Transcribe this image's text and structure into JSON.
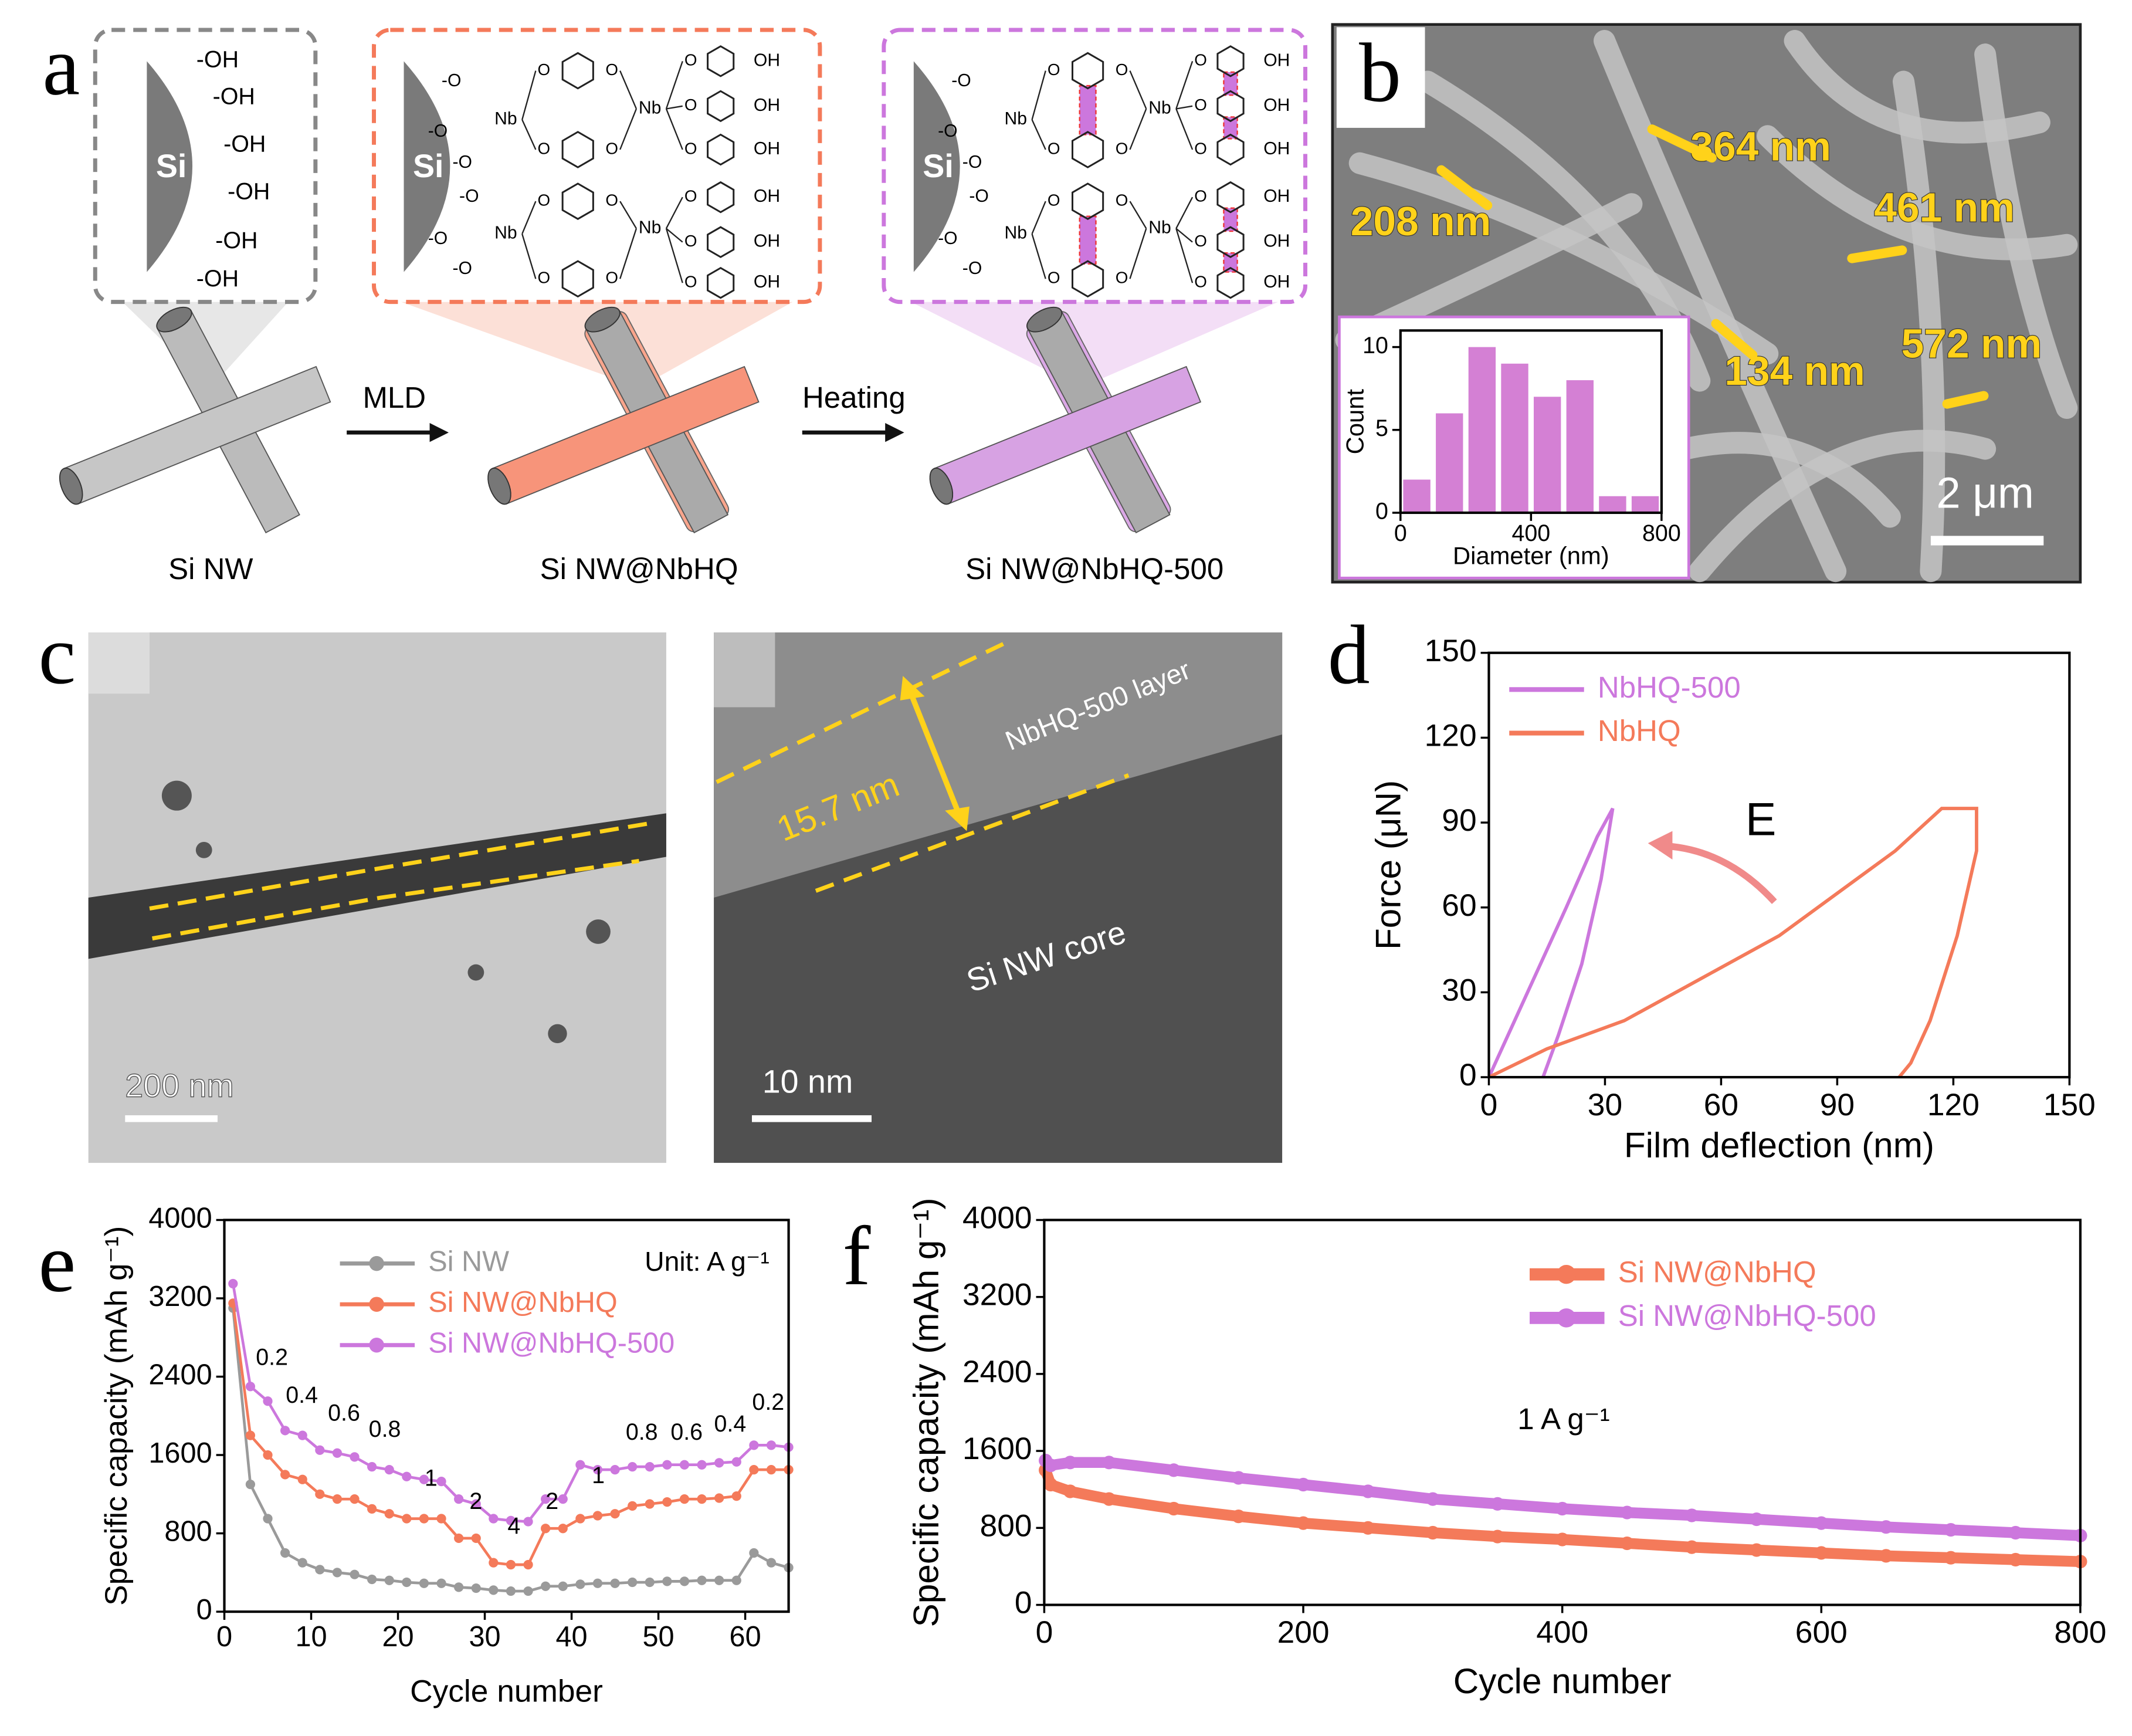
{
  "figure": {
    "panel_labels": [
      "a",
      "b",
      "c",
      "d",
      "e",
      "f"
    ],
    "a": {
      "si": "Si",
      "hydroxyls": [
        "-OH",
        "-OH",
        "-OH",
        "-OH",
        "-OH",
        "-OH"
      ],
      "nb": "Nb",
      "oxy": "-O",
      "o": "O",
      "oh": "OH",
      "steps": [
        "MLD",
        "Heating"
      ],
      "samples": [
        "Si NW",
        "Si NW@NbHQ",
        "Si NW@NbHQ-500"
      ]
    },
    "b": {
      "sizes": [
        "364 nm",
        "208 nm",
        "461 nm",
        "134 nm",
        "572 nm"
      ],
      "scale": "2 μm"
    },
    "c": {
      "scale_left": "200 nm",
      "scale_right": "10 nm",
      "thickness": "15.7 nm",
      "layer": "NbHQ-500 layer",
      "core": "Si NW core"
    }
  },
  "chart_data": [
    {
      "type": "histogram",
      "xlabel": "Diameter (nm)",
      "ylabel": "Count",
      "color": "#d480d4",
      "bins": [
        0,
        100,
        200,
        300,
        400,
        500,
        600,
        700,
        800
      ],
      "values": [
        2,
        6,
        10,
        9,
        7,
        8,
        1,
        1
      ],
      "xlim": [
        0,
        800
      ],
      "xticks": [
        0,
        400,
        800
      ],
      "ylim": [
        0,
        11
      ],
      "yticks": [
        0,
        5,
        10
      ]
    },
    {
      "type": "line",
      "xlabel": "Film deflection (nm)",
      "ylabel": "Force (μN)",
      "legend": "upper left",
      "annotations": [
        "E"
      ],
      "xlim": [
        0,
        150
      ],
      "xticks": [
        0,
        30,
        60,
        90,
        120,
        150
      ],
      "ylim": [
        0,
        150
      ],
      "yticks": [
        0,
        30,
        60,
        90,
        120,
        150
      ],
      "series": [
        {
          "name": "NbHQ-500",
          "color": "#cc77dd",
          "x": [
            0,
            10,
            20,
            28,
            32,
            32,
            29,
            24,
            18,
            14
          ],
          "values": [
            0,
            30,
            60,
            85,
            95,
            95,
            70,
            40,
            15,
            0
          ]
        },
        {
          "name": "NbHQ",
          "color": "#f47a5a",
          "x": [
            0,
            15,
            35,
            55,
            75,
            90,
            105,
            117,
            126,
            126,
            121,
            114,
            109,
            106
          ],
          "values": [
            0,
            10,
            20,
            35,
            50,
            65,
            80,
            95,
            95,
            80,
            50,
            20,
            5,
            0
          ]
        }
      ]
    },
    {
      "type": "line",
      "markers": true,
      "xlabel": "Cycle number",
      "ylabel": "Specific capacity (mAh g⁻¹)",
      "legend": "upper center",
      "annotations": [
        "Unit: A g⁻¹"
      ],
      "rate_labels": [
        "0.2",
        "0.4",
        "0.6",
        "0.8",
        "1",
        "2",
        "4",
        "2",
        "1",
        "0.8",
        "0.6",
        "0.4",
        "0.2"
      ],
      "xlim": [
        0,
        65
      ],
      "xticks": [
        0,
        10,
        20,
        30,
        40,
        50,
        60
      ],
      "ylim": [
        0,
        4000
      ],
      "yticks": [
        0,
        800,
        1600,
        2400,
        3200,
        4000
      ],
      "x": [
        1,
        3,
        5,
        7,
        9,
        11,
        13,
        15,
        17,
        19,
        21,
        23,
        25,
        27,
        29,
        31,
        33,
        35,
        37,
        39,
        41,
        43,
        45,
        47,
        49,
        51,
        53,
        55,
        57,
        59,
        61,
        63,
        65
      ],
      "series": [
        {
          "name": "Si NW",
          "color": "#9a9a9a",
          "values": [
            3100,
            1300,
            950,
            600,
            500,
            430,
            400,
            380,
            330,
            320,
            300,
            290,
            290,
            250,
            240,
            220,
            210,
            210,
            260,
            260,
            280,
            290,
            290,
            300,
            300,
            310,
            310,
            320,
            320,
            320,
            600,
            500,
            450
          ]
        },
        {
          "name": "Si NW@NbHQ",
          "color": "#f47a5a",
          "values": [
            3150,
            1800,
            1600,
            1400,
            1350,
            1200,
            1150,
            1150,
            1050,
            1000,
            950,
            950,
            950,
            750,
            750,
            500,
            480,
            480,
            850,
            850,
            950,
            980,
            1000,
            1080,
            1100,
            1120,
            1150,
            1150,
            1160,
            1180,
            1450,
            1450,
            1450
          ]
        },
        {
          "name": "Si NW@NbHQ-500",
          "color": "#cc77dd",
          "values": [
            3350,
            2300,
            2150,
            1850,
            1800,
            1650,
            1620,
            1580,
            1480,
            1450,
            1380,
            1350,
            1330,
            1150,
            1100,
            950,
            930,
            920,
            1150,
            1150,
            1500,
            1450,
            1450,
            1480,
            1480,
            1500,
            1500,
            1500,
            1520,
            1530,
            1700,
            1700,
            1680
          ]
        }
      ]
    },
    {
      "type": "line",
      "markers": true,
      "xlabel": "Cycle number",
      "ylabel": "Specific capacity (mAh g⁻¹)",
      "legend": "upper center",
      "annotations": [
        "1 A g⁻¹"
      ],
      "xlim": [
        0,
        800
      ],
      "xticks": [
        0,
        200,
        400,
        600,
        800
      ],
      "ylim": [
        0,
        4000
      ],
      "yticks": [
        0,
        800,
        1600,
        2400,
        3200,
        4000
      ],
      "x": [
        1,
        5,
        20,
        50,
        100,
        150,
        200,
        250,
        300,
        350,
        400,
        450,
        500,
        550,
        600,
        650,
        700,
        750,
        800
      ],
      "series": [
        {
          "name": "Si NW@NbHQ",
          "color": "#f47a5a",
          "values": [
            1400,
            1250,
            1180,
            1100,
            1000,
            920,
            850,
            800,
            750,
            710,
            680,
            640,
            600,
            570,
            540,
            510,
            490,
            470,
            450
          ]
        },
        {
          "name": "Si NW@NbHQ-500",
          "color": "#cc77dd",
          "values": [
            1500,
            1450,
            1480,
            1480,
            1400,
            1320,
            1250,
            1180,
            1100,
            1050,
            1000,
            960,
            930,
            890,
            850,
            810,
            780,
            750,
            720
          ]
        }
      ]
    }
  ]
}
